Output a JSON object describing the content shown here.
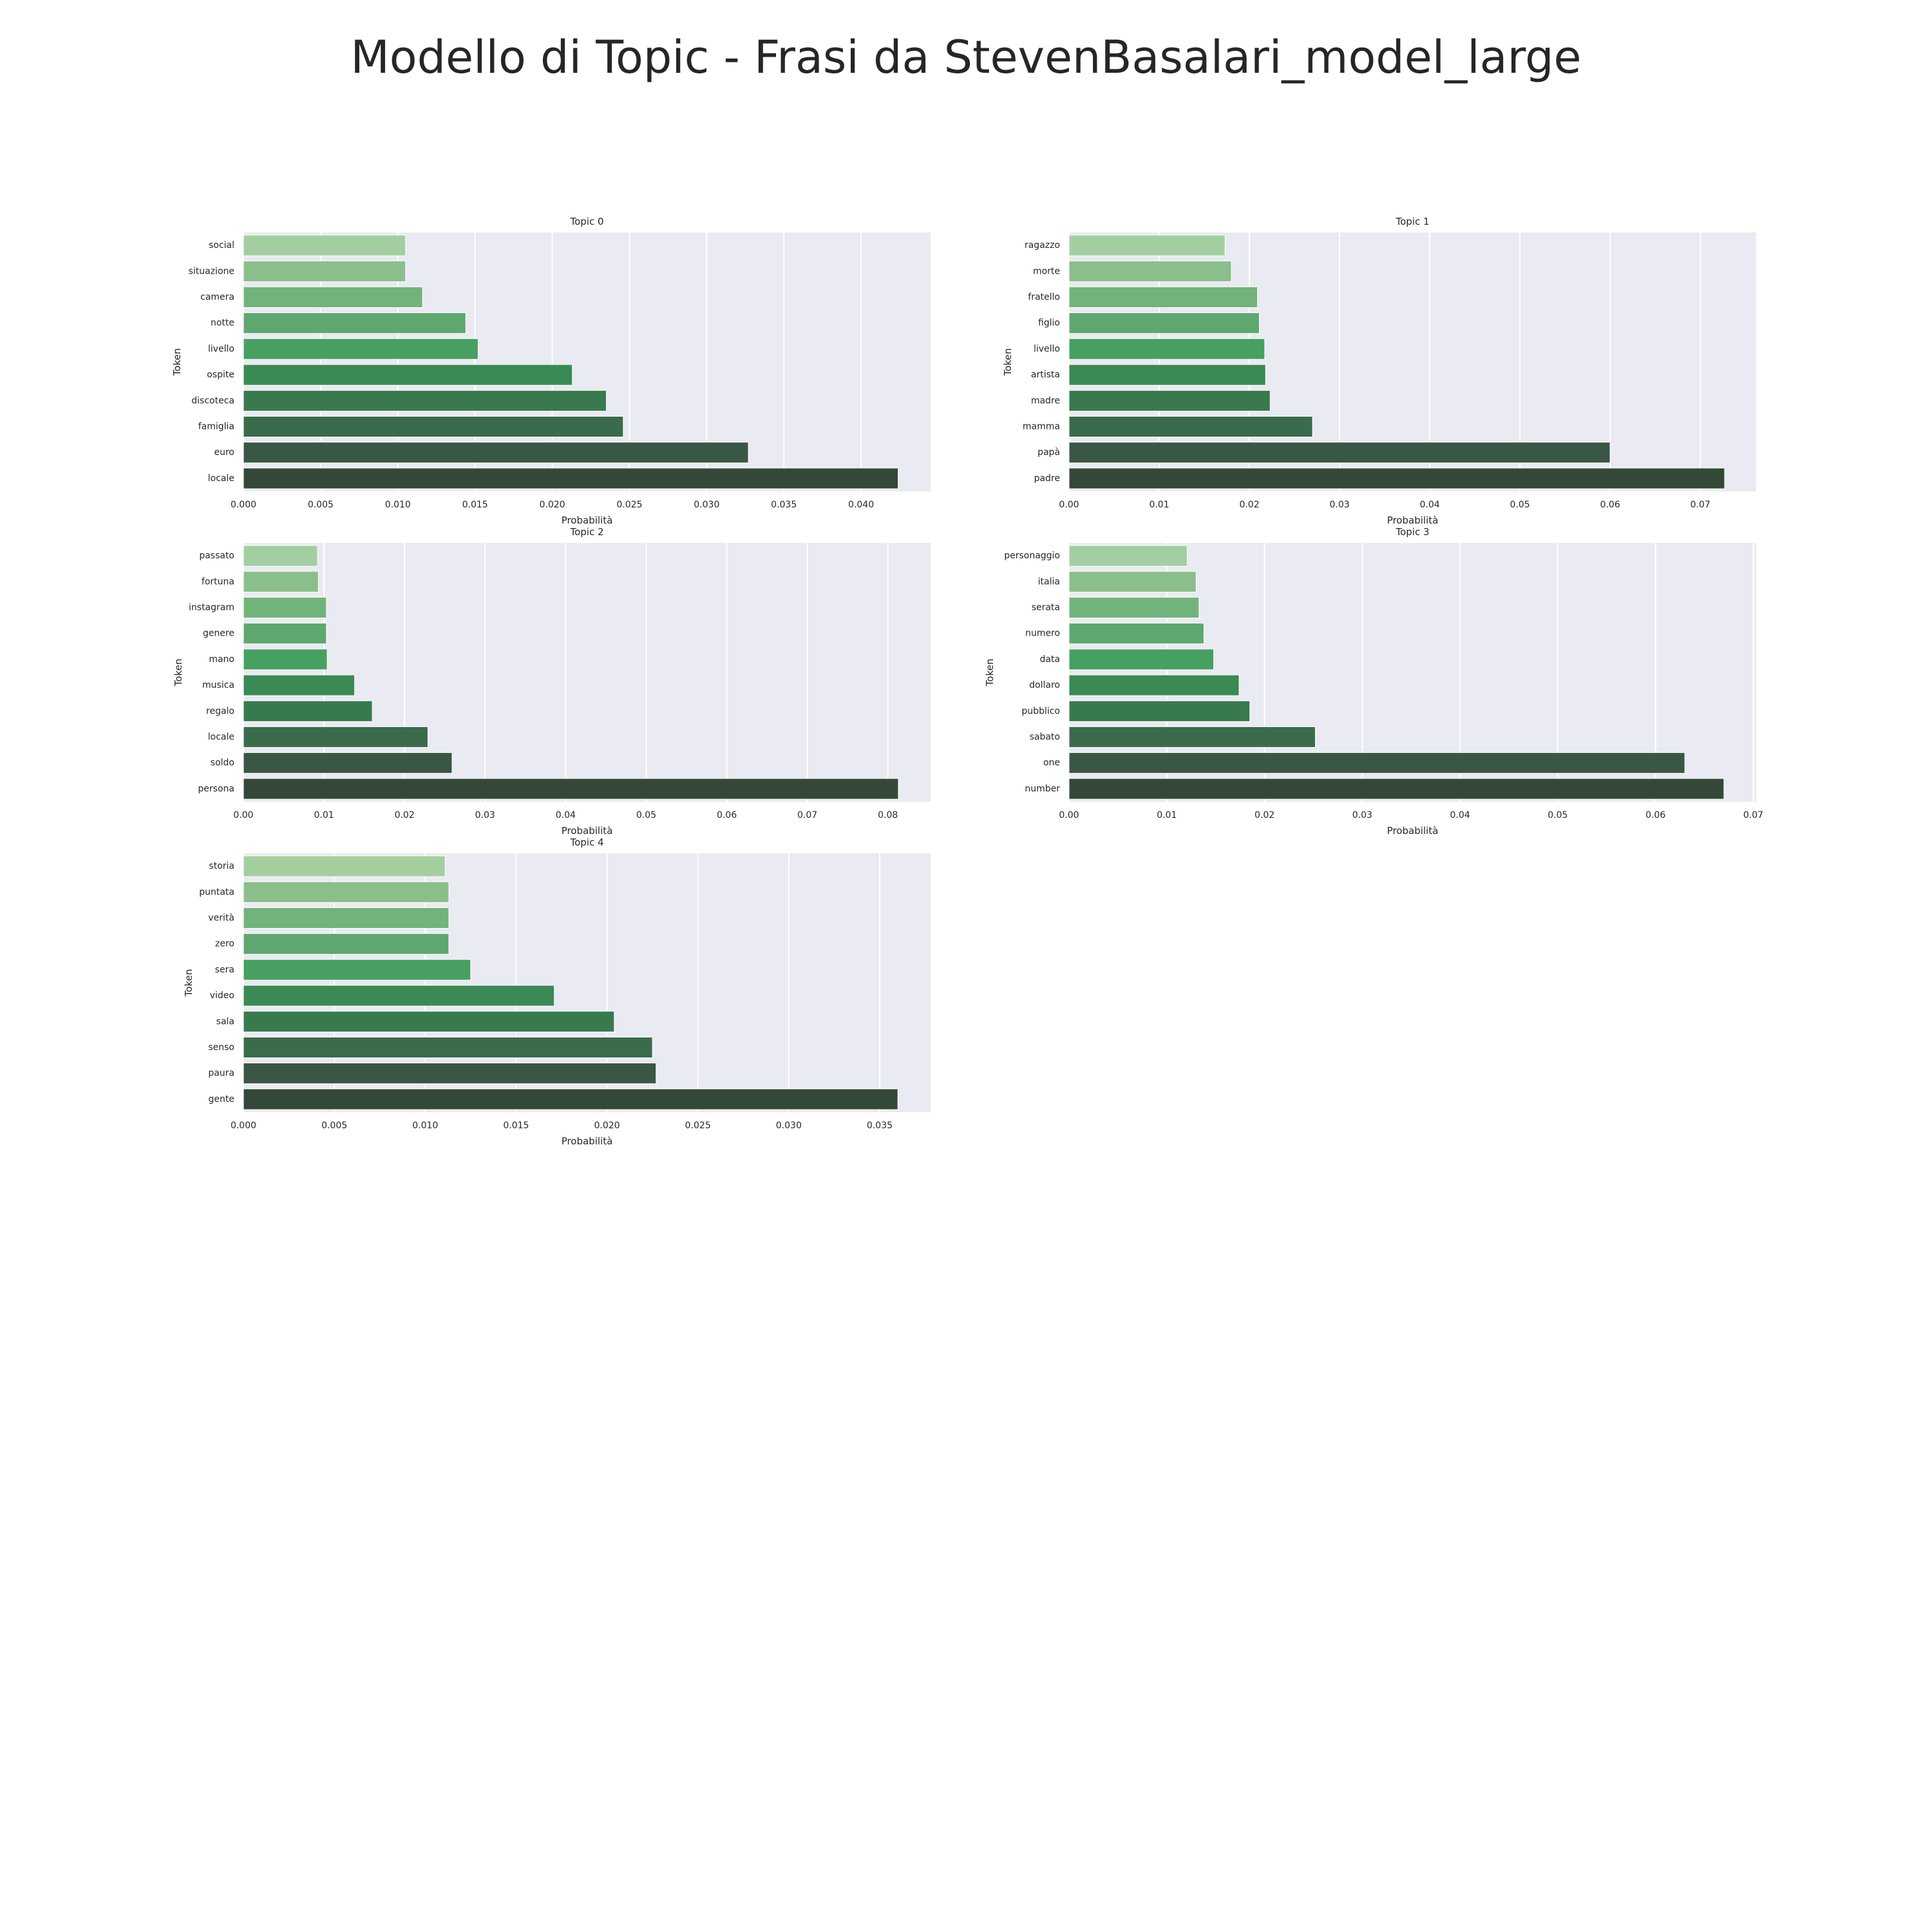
{
  "figure": {
    "title": "Modello di Topic - Frasi da StevenBasalari_model_large"
  },
  "palette": [
    "#a3cfa0",
    "#8abf8b",
    "#72b37c",
    "#5ea86f",
    "#47a062",
    "#3a8a55",
    "#387a4e",
    "#3a6b4a",
    "#3a5644",
    "#344838"
  ],
  "chart_data": [
    {
      "type": "bar",
      "orientation": "horizontal",
      "title": "Topic 0",
      "xlabel": "Probabilità",
      "ylabel": "Token",
      "categories": [
        "social",
        "situazione",
        "camera",
        "notte",
        "livello",
        "ospite",
        "discoteca",
        "famiglia",
        "euro",
        "locale"
      ],
      "values": [
        0.0105,
        0.0105,
        0.0116,
        0.0144,
        0.0152,
        0.0213,
        0.0235,
        0.0246,
        0.0327,
        0.0424
      ],
      "xlim": [
        0,
        0.0445
      ],
      "xticks": [
        0.0,
        0.005,
        0.01,
        0.015,
        0.02,
        0.025,
        0.03,
        0.035,
        0.04
      ],
      "xtick_labels": [
        "0.000",
        "0.005",
        "0.010",
        "0.015",
        "0.020",
        "0.025",
        "0.030",
        "0.035",
        "0.040"
      ],
      "grid": true
    },
    {
      "type": "bar",
      "orientation": "horizontal",
      "title": "Topic 1",
      "xlabel": "Probabilità",
      "ylabel": "Token",
      "categories": [
        "ragazzo",
        "morte",
        "fratello",
        "figlio",
        "livello",
        "artista",
        "madre",
        "mamma",
        "papà",
        "padre"
      ],
      "values": [
        0.0173,
        0.018,
        0.0209,
        0.0211,
        0.0217,
        0.0218,
        0.0223,
        0.027,
        0.06,
        0.0727
      ],
      "xlim": [
        0,
        0.0762
      ],
      "xticks": [
        0.0,
        0.01,
        0.02,
        0.03,
        0.04,
        0.05,
        0.06,
        0.07
      ],
      "xtick_labels": [
        "0.00",
        "0.01",
        "0.02",
        "0.03",
        "0.04",
        "0.05",
        "0.06",
        "0.07"
      ],
      "grid": true
    },
    {
      "type": "bar",
      "orientation": "horizontal",
      "title": "Topic 2",
      "xlabel": "Probabilità",
      "ylabel": "Token",
      "categories": [
        "passato",
        "fortuna",
        "instagram",
        "genere",
        "mano",
        "musica",
        "regalo",
        "locale",
        "soldo",
        "persona"
      ],
      "values": [
        0.0092,
        0.0093,
        0.0103,
        0.0103,
        0.0104,
        0.0138,
        0.016,
        0.0229,
        0.0259,
        0.0813
      ],
      "xlim": [
        0,
        0.0853
      ],
      "xticks": [
        0.0,
        0.01,
        0.02,
        0.03,
        0.04,
        0.05,
        0.06,
        0.07,
        0.08
      ],
      "xtick_labels": [
        "0.00",
        "0.01",
        "0.02",
        "0.03",
        "0.04",
        "0.05",
        "0.06",
        "0.07",
        "0.08"
      ],
      "grid": true
    },
    {
      "type": "bar",
      "orientation": "horizontal",
      "title": "Topic 3",
      "xlabel": "Probabilità",
      "ylabel": "Token",
      "categories": [
        "personaggio",
        "italia",
        "serata",
        "numero",
        "data",
        "dollaro",
        "pubblico",
        "sabato",
        "one",
        "number"
      ],
      "values": [
        0.0121,
        0.013,
        0.0133,
        0.0138,
        0.0148,
        0.0174,
        0.0185,
        0.0252,
        0.063,
        0.067
      ],
      "xlim": [
        0,
        0.0703
      ],
      "xticks": [
        0.0,
        0.01,
        0.02,
        0.03,
        0.04,
        0.05,
        0.06,
        0.07
      ],
      "xtick_labels": [
        "0.00",
        "0.01",
        "0.02",
        "0.03",
        "0.04",
        "0.05",
        "0.06",
        "0.07"
      ],
      "grid": true
    },
    {
      "type": "bar",
      "orientation": "horizontal",
      "title": "Topic 4",
      "xlabel": "Probabilità",
      "ylabel": "Token",
      "categories": [
        "storia",
        "puntata",
        "verità",
        "zero",
        "sera",
        "video",
        "sala",
        "senso",
        "paura",
        "gente"
      ],
      "values": [
        0.0111,
        0.0113,
        0.0113,
        0.0113,
        0.0125,
        0.0171,
        0.0204,
        0.0225,
        0.0227,
        0.036
      ],
      "xlim": [
        0,
        0.0378
      ],
      "xticks": [
        0.0,
        0.005,
        0.01,
        0.015,
        0.02,
        0.025,
        0.03,
        0.035
      ],
      "xtick_labels": [
        "0.000",
        "0.005",
        "0.010",
        "0.015",
        "0.020",
        "0.025",
        "0.030",
        "0.035"
      ],
      "grid": true
    }
  ]
}
